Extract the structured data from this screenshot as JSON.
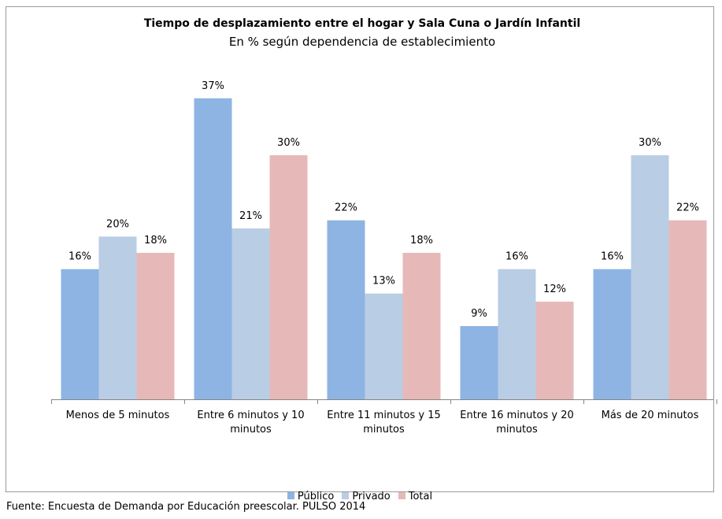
{
  "chart_data": {
    "type": "bar",
    "title": "Tiempo de desplazamiento entre el hogar y Sala Cuna o Jardín Infantil",
    "subtitle": "En % según dependencia de establecimiento",
    "categories": [
      "Menos de 5 minutos",
      "Entre 6 minutos y 10 minutos",
      "Entre 11 minutos y 15 minutos",
      "Entre 16 minutos y 20 minutos",
      "Más de 20 minutos"
    ],
    "series": [
      {
        "name": "Público",
        "color": "#8eb4e3",
        "values": [
          16,
          37,
          22,
          9,
          16
        ],
        "value_labels": [
          "16%",
          "37%",
          "22%",
          "9%",
          "16%"
        ]
      },
      {
        "name": "Privado",
        "color": "#b9cde5",
        "values": [
          20,
          21,
          13,
          16,
          30
        ],
        "value_labels": [
          "20%",
          "21%",
          "13%",
          "16%",
          "30%"
        ]
      },
      {
        "name": "Total",
        "color": "#e6b9b8",
        "values": [
          18,
          30,
          18,
          12,
          22
        ],
        "value_labels": [
          "18%",
          "30%",
          "18%",
          "12%",
          "22%"
        ]
      }
    ],
    "legend": "bottom",
    "source": "Fuente: Encuesta de Demanda por Educación preescolar. PULSO 2014"
  }
}
